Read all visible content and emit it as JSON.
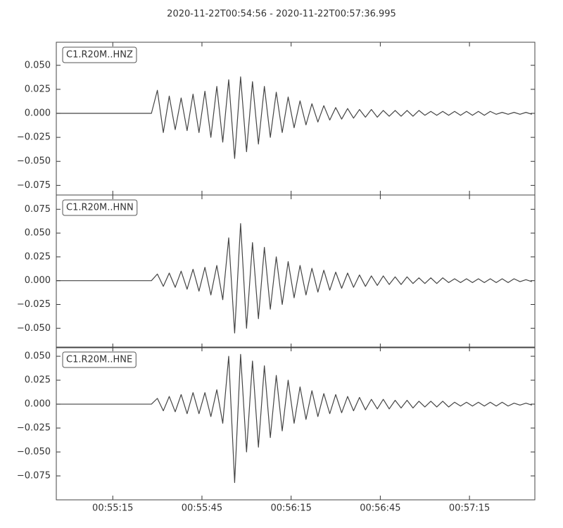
{
  "title": "2020-11-22T00:54:56  -  2020-11-22T00:57:36.995",
  "chart_data": [
    {
      "type": "line",
      "label": "C1.R20M..HNZ",
      "color": "#444444",
      "x": [
        0,
        2,
        4,
        6,
        8,
        10,
        12,
        14,
        16,
        18,
        20,
        22,
        24,
        26,
        28,
        30,
        32,
        34,
        36,
        38,
        40,
        42,
        44,
        46,
        48,
        50,
        52,
        54,
        56,
        58,
        60,
        62,
        64,
        66,
        68,
        70,
        72,
        74,
        76,
        78,
        80,
        82,
        84,
        86,
        88,
        90,
        92,
        94,
        96,
        98,
        100,
        102,
        104,
        106,
        108,
        110,
        112,
        114,
        116,
        118,
        120,
        122,
        124,
        126,
        128,
        130,
        132,
        134,
        136,
        138,
        140,
        142,
        144,
        146,
        148,
        150,
        152,
        154,
        156,
        158,
        160
      ],
      "values": [
        0,
        0,
        0,
        0,
        0,
        0,
        0,
        0,
        0,
        0,
        0,
        0,
        0,
        0,
        0,
        0,
        0,
        0.024,
        -0.02,
        0.018,
        -0.017,
        0.016,
        -0.018,
        0.02,
        -0.02,
        0.023,
        -0.025,
        0.028,
        -0.03,
        0.035,
        -0.047,
        0.038,
        -0.04,
        0.033,
        -0.032,
        0.028,
        -0.025,
        0.022,
        -0.02,
        0.017,
        -0.015,
        0.013,
        -0.012,
        0.01,
        -0.009,
        0.008,
        -0.007,
        0.006,
        -0.006,
        0.005,
        -0.005,
        0.004,
        -0.004,
        0.004,
        -0.004,
        0.003,
        -0.003,
        0.003,
        -0.003,
        0.003,
        -0.003,
        0.003,
        -0.002,
        0.002,
        -0.002,
        0.002,
        -0.002,
        0.002,
        -0.002,
        0.002,
        -0.002,
        0.002,
        -0.002,
        0.002,
        -0.001,
        0.001,
        -0.001,
        0.001,
        -0.001,
        0.001,
        -0.001
      ],
      "xlim": [
        0,
        160.995
      ],
      "ylim": [
        -0.085,
        0.074
      ],
      "yticks": [
        {
          "value": -0.075,
          "label": "−0.075"
        },
        {
          "value": -0.05,
          "label": "−0.050"
        },
        {
          "value": -0.025,
          "label": "−0.025"
        },
        {
          "value": 0,
          "label": "0.000"
        },
        {
          "value": 0.025,
          "label": "0.025"
        },
        {
          "value": 0.05,
          "label": "0.050"
        }
      ]
    },
    {
      "type": "line",
      "label": "C1.R20M..HNN",
      "color": "#444444",
      "x": [
        0,
        2,
        4,
        6,
        8,
        10,
        12,
        14,
        16,
        18,
        20,
        22,
        24,
        26,
        28,
        30,
        32,
        34,
        36,
        38,
        40,
        42,
        44,
        46,
        48,
        50,
        52,
        54,
        56,
        58,
        60,
        62,
        64,
        66,
        68,
        70,
        72,
        74,
        76,
        78,
        80,
        82,
        84,
        86,
        88,
        90,
        92,
        94,
        96,
        98,
        100,
        102,
        104,
        106,
        108,
        110,
        112,
        114,
        116,
        118,
        120,
        122,
        124,
        126,
        128,
        130,
        132,
        134,
        136,
        138,
        140,
        142,
        144,
        146,
        148,
        150,
        152,
        154,
        156,
        158,
        160
      ],
      "values": [
        0,
        0,
        0,
        0,
        0,
        0,
        0,
        0,
        0,
        0,
        0,
        0,
        0,
        0,
        0,
        0,
        0,
        0.007,
        -0.006,
        0.008,
        -0.007,
        0.01,
        -0.009,
        0.012,
        -0.011,
        0.014,
        -0.015,
        0.016,
        -0.02,
        0.045,
        -0.055,
        0.06,
        -0.05,
        0.04,
        -0.04,
        0.035,
        -0.03,
        0.025,
        -0.025,
        0.02,
        -0.018,
        0.016,
        -0.015,
        0.013,
        -0.012,
        0.011,
        -0.01,
        0.009,
        -0.008,
        0.008,
        -0.007,
        0.006,
        -0.006,
        0.005,
        -0.005,
        0.005,
        -0.004,
        0.004,
        -0.004,
        0.004,
        -0.003,
        0.003,
        -0.003,
        0.003,
        -0.003,
        0.003,
        -0.002,
        0.002,
        -0.002,
        0.002,
        -0.002,
        0.002,
        -0.002,
        0.002,
        -0.002,
        0.002,
        -0.002,
        0.002,
        -0.001,
        0.001,
        -0.001
      ],
      "xlim": [
        0,
        160.995
      ],
      "ylim": [
        -0.0705,
        0.09
      ],
      "yticks": [
        {
          "value": -0.05,
          "label": "−0.050"
        },
        {
          "value": -0.025,
          "label": "−0.025"
        },
        {
          "value": 0,
          "label": "0.000"
        },
        {
          "value": 0.025,
          "label": "0.025"
        },
        {
          "value": 0.05,
          "label": "0.050"
        },
        {
          "value": 0.075,
          "label": "0.075"
        }
      ]
    },
    {
      "type": "line",
      "label": "C1.R20M..HNE",
      "color": "#444444",
      "x": [
        0,
        2,
        4,
        6,
        8,
        10,
        12,
        14,
        16,
        18,
        20,
        22,
        24,
        26,
        28,
        30,
        32,
        34,
        36,
        38,
        40,
        42,
        44,
        46,
        48,
        50,
        52,
        54,
        56,
        58,
        60,
        62,
        64,
        66,
        68,
        70,
        72,
        74,
        76,
        78,
        80,
        82,
        84,
        86,
        88,
        90,
        92,
        94,
        96,
        98,
        100,
        102,
        104,
        106,
        108,
        110,
        112,
        114,
        116,
        118,
        120,
        122,
        124,
        126,
        128,
        130,
        132,
        134,
        136,
        138,
        140,
        142,
        144,
        146,
        148,
        150,
        152,
        154,
        156,
        158,
        160
      ],
      "values": [
        0,
        0,
        0,
        0,
        0,
        0,
        0,
        0,
        0,
        0,
        0,
        0,
        0,
        0,
        0,
        0,
        0,
        0.006,
        -0.007,
        0.008,
        -0.008,
        0.01,
        -0.01,
        0.012,
        -0.01,
        0.012,
        -0.013,
        0.015,
        -0.02,
        0.05,
        -0.082,
        0.052,
        -0.05,
        0.045,
        -0.045,
        0.04,
        -0.035,
        0.03,
        -0.028,
        0.025,
        -0.02,
        0.018,
        -0.016,
        0.014,
        -0.013,
        0.011,
        -0.01,
        0.01,
        -0.009,
        0.008,
        -0.007,
        0.007,
        -0.006,
        0.005,
        -0.005,
        0.005,
        -0.005,
        0.004,
        -0.004,
        0.004,
        -0.004,
        0.003,
        -0.003,
        0.003,
        -0.003,
        0.003,
        -0.003,
        0.002,
        -0.002,
        0.002,
        -0.002,
        0.002,
        -0.002,
        0.002,
        -0.002,
        0.002,
        -0.002,
        0.001,
        -0.001,
        0.001,
        -0.001
      ],
      "xlim": [
        0,
        160.995
      ],
      "ylim": [
        -0.1,
        0.0596
      ],
      "yticks": [
        {
          "value": -0.075,
          "label": "−0.075"
        },
        {
          "value": -0.05,
          "label": "−0.050"
        },
        {
          "value": -0.025,
          "label": "−0.025"
        },
        {
          "value": 0,
          "label": "0.000"
        },
        {
          "value": 0.025,
          "label": "0.025"
        },
        {
          "value": 0.05,
          "label": "0.050"
        }
      ],
      "xticks": [
        {
          "value": 19,
          "label": "00:55:15"
        },
        {
          "value": 49,
          "label": "00:55:45"
        },
        {
          "value": 79,
          "label": "00:56:15"
        },
        {
          "value": 109,
          "label": "00:56:45"
        },
        {
          "value": 139,
          "label": "00:57:15"
        }
      ]
    }
  ]
}
